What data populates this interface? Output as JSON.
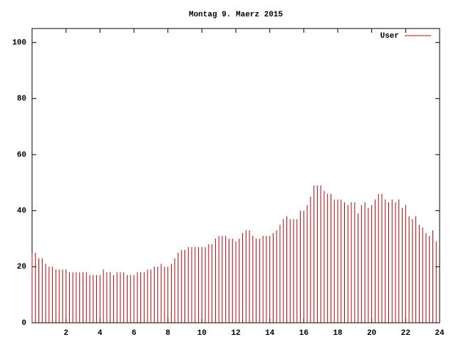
{
  "chart_data": {
    "type": "impulse",
    "title": "Montag 9. Maerz 2015",
    "legend": "top-right",
    "xlim": [
      0,
      24
    ],
    "xticks": [
      2,
      4,
      6,
      8,
      10,
      12,
      14,
      16,
      18,
      20,
      22,
      24
    ],
    "ylim": [
      0,
      105
    ],
    "yticks": [
      0,
      20,
      40,
      60,
      80,
      100
    ],
    "x": [
      0,
      0.2,
      0.4,
      0.6,
      0.8,
      1,
      1.2,
      1.4,
      1.6,
      1.8,
      2,
      2.2,
      2.4,
      2.6,
      2.8,
      3,
      3.2,
      3.4,
      3.6,
      3.8,
      4,
      4.2,
      4.4,
      4.6,
      4.8,
      5,
      5.2,
      5.4,
      5.6,
      5.8,
      6,
      6.2,
      6.4,
      6.6,
      6.8,
      7,
      7.2,
      7.4,
      7.6,
      7.8,
      8,
      8.2,
      8.4,
      8.6,
      8.8,
      9,
      9.2,
      9.4,
      9.6,
      9.8,
      10,
      10.2,
      10.4,
      10.6,
      10.8,
      11,
      11.2,
      11.4,
      11.6,
      11.8,
      12,
      12.2,
      12.4,
      12.6,
      12.8,
      13,
      13.2,
      13.4,
      13.6,
      13.8,
      14,
      14.2,
      14.4,
      14.6,
      14.8,
      15,
      15.2,
      15.4,
      15.6,
      15.8,
      16,
      16.2,
      16.4,
      16.6,
      16.8,
      17,
      17.2,
      17.4,
      17.6,
      17.8,
      18,
      18.2,
      18.4,
      18.6,
      18.8,
      19,
      19.2,
      19.4,
      19.6,
      19.8,
      20,
      20.2,
      20.4,
      20.6,
      20.8,
      21,
      21.2,
      21.4,
      21.6,
      21.8,
      22,
      22.2,
      22.4,
      22.6,
      22.8,
      23,
      23.2,
      23.4,
      23.6,
      23.8
    ],
    "series": [
      {
        "name": "User",
        "color": "#c00000",
        "values": [
          25,
          25,
          23,
          23,
          21,
          20,
          20,
          19,
          19,
          19,
          19,
          18,
          18,
          18,
          18,
          18,
          18,
          17,
          17,
          17,
          17,
          19,
          18,
          18,
          17,
          18,
          18,
          18,
          17,
          17,
          17,
          18,
          18,
          18,
          19,
          19,
          20,
          20,
          21,
          20,
          20,
          21,
          23,
          25,
          26,
          26,
          27,
          27,
          27,
          27,
          27,
          27,
          28,
          28,
          30,
          31,
          31,
          31,
          30,
          30,
          29,
          30,
          32,
          33,
          33,
          31,
          30,
          30,
          31,
          31,
          31,
          32,
          33,
          35,
          37,
          38,
          37,
          37,
          37,
          40,
          40,
          42,
          45,
          49,
          49,
          49,
          47,
          46,
          46,
          44,
          44,
          44,
          43,
          42,
          43,
          43,
          39,
          42,
          43,
          41,
          42,
          44,
          46,
          46,
          44,
          43,
          44,
          43,
          44,
          41,
          42,
          38,
          37,
          38,
          35,
          34,
          32,
          31,
          33,
          29
        ]
      }
    ]
  }
}
